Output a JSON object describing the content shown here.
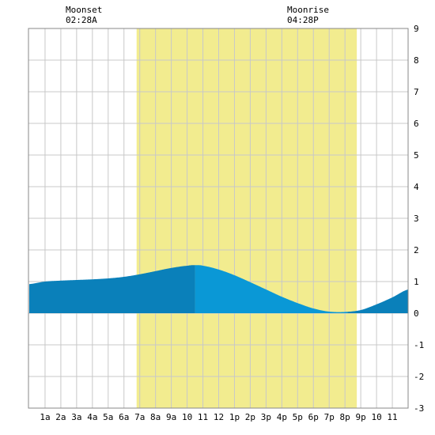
{
  "moon": {
    "moonset_label": "Moonset",
    "moonset_time": "02:28A",
    "moonrise_label": "Moonrise",
    "moonrise_time": "04:28P"
  },
  "colors": {
    "daylight": "#f2ec8f",
    "tide_night": "#0a80ba",
    "tide_day": "#0a98d6",
    "grid": "#c8c8c8",
    "frame": "#888888"
  },
  "chart_data": {
    "type": "area",
    "title": "",
    "xlabel": "",
    "ylabel": "",
    "x_unit": "hour of day",
    "xlim": [
      -0.05,
      24.0
    ],
    "ylim": [
      -3,
      9
    ],
    "y_ticks": [
      "-3",
      "-2",
      "-1",
      "0",
      "1",
      "2",
      "3",
      "4",
      "5",
      "6",
      "7",
      "8",
      "9"
    ],
    "y_tick_values": [
      -3,
      -2,
      -1,
      0,
      1,
      2,
      3,
      4,
      5,
      6,
      7,
      8,
      9
    ],
    "x_ticks": [
      "1a",
      "2a",
      "3a",
      "4a",
      "5a",
      "6a",
      "7a",
      "8a",
      "9a",
      "10",
      "11",
      "12",
      "1p",
      "2p",
      "3p",
      "4p",
      "5p",
      "6p",
      "7p",
      "8p",
      "9p",
      "10",
      "11"
    ],
    "x_tick_values": [
      1,
      2,
      3,
      4,
      5,
      6,
      7,
      8,
      9,
      10,
      11,
      12,
      13,
      14,
      15,
      16,
      17,
      18,
      19,
      20,
      21,
      22,
      23
    ],
    "daylight": [
      6.8,
      20.75
    ],
    "grid": true,
    "series": [
      {
        "x": [
          0,
          1,
          2,
          3,
          4,
          5,
          6,
          7,
          8,
          9,
          10,
          10.5,
          11,
          12,
          13,
          14,
          15,
          16,
          17,
          18,
          19,
          20,
          21,
          22,
          23,
          24
        ],
        "y": [
          0.92,
          1.0,
          1.03,
          1.05,
          1.07,
          1.1,
          1.15,
          1.23,
          1.33,
          1.43,
          1.5,
          1.52,
          1.5,
          1.38,
          1.2,
          0.98,
          0.75,
          0.52,
          0.32,
          0.15,
          0.05,
          0.04,
          0.1,
          0.28,
          0.5,
          0.75
        ]
      }
    ]
  }
}
